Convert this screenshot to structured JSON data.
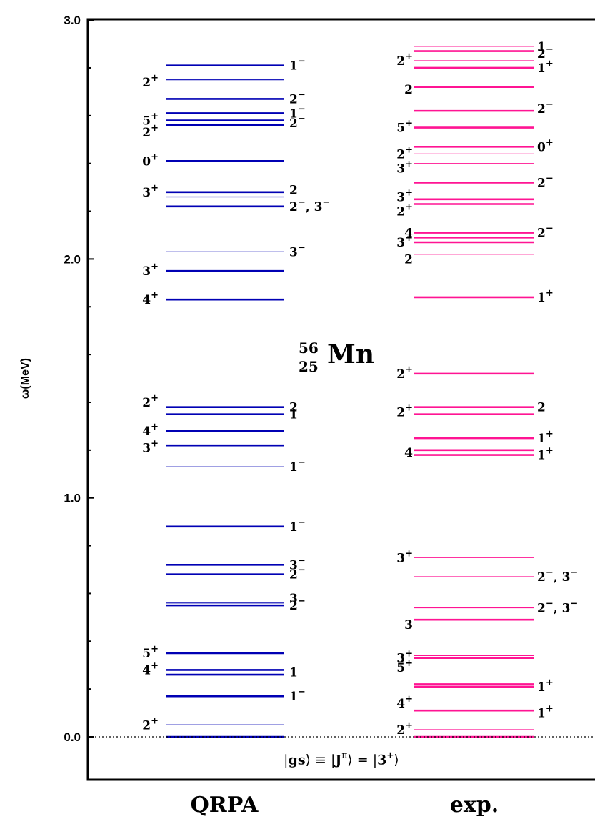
{
  "chart_data": {
    "type": "level-scheme",
    "ylabel": "ω(MeV)",
    "ylim": [
      -0.2,
      3.0
    ],
    "yticks": [
      "0.0",
      "1.0",
      "2.0",
      "3.0"
    ],
    "nucleus": {
      "A": "56",
      "Z": "25",
      "symbol": "Mn"
    },
    "ground_state_label": "|gs⟩ ≡ |J^π⟩ = |3^+⟩",
    "columns": [
      {
        "name": "QRPA",
        "color": "#0000b4",
        "levels": [
          {
            "e": 0.0,
            "thick": true
          },
          {
            "e": 0.05,
            "thick": false
          },
          {
            "e": 0.17,
            "thick": true
          },
          {
            "e": 0.26,
            "thick": true
          },
          {
            "e": 0.28,
            "thick": true
          },
          {
            "e": 0.35,
            "thick": true
          },
          {
            "e": 0.55,
            "thick": true
          },
          {
            "e": 0.56,
            "thick": false
          },
          {
            "e": 0.68,
            "thick": true
          },
          {
            "e": 0.72,
            "thick": true
          },
          {
            "e": 0.88,
            "thick": true
          },
          {
            "e": 1.13,
            "thick": false
          },
          {
            "e": 1.22,
            "thick": true
          },
          {
            "e": 1.28,
            "thick": true
          },
          {
            "e": 1.35,
            "thick": true
          },
          {
            "e": 1.38,
            "thick": true
          },
          {
            "e": 1.83,
            "thick": true
          },
          {
            "e": 1.95,
            "thick": true
          },
          {
            "e": 2.03,
            "thick": false
          },
          {
            "e": 2.22,
            "thick": true
          },
          {
            "e": 2.26,
            "thick": false
          },
          {
            "e": 2.28,
            "thick": true
          },
          {
            "e": 2.41,
            "thick": true
          },
          {
            "e": 2.56,
            "thick": true
          },
          {
            "e": 2.58,
            "thick": true
          },
          {
            "e": 2.61,
            "thick": true
          },
          {
            "e": 2.67,
            "thick": true
          },
          {
            "e": 2.75,
            "thick": false
          },
          {
            "e": 2.81,
            "thick": true
          }
        ],
        "labels_left": [
          {
            "e": 0.05,
            "j": "2",
            "p": "+"
          },
          {
            "e": 0.28,
            "j": "4",
            "p": "+"
          },
          {
            "e": 0.35,
            "j": "5",
            "p": "+"
          },
          {
            "e": 1.21,
            "j": "3",
            "p": "+"
          },
          {
            "e": 1.28,
            "j": "4",
            "p": "+"
          },
          {
            "e": 1.4,
            "j": "2",
            "p": "+"
          },
          {
            "e": 1.83,
            "j": "4",
            "p": "+"
          },
          {
            "e": 1.95,
            "j": "3",
            "p": "+"
          },
          {
            "e": 2.28,
            "j": "3",
            "p": "+"
          },
          {
            "e": 2.41,
            "j": "0",
            "p": "+"
          },
          {
            "e": 2.53,
            "j": "2",
            "p": "+"
          },
          {
            "e": 2.58,
            "j": "5",
            "p": "+"
          },
          {
            "e": 2.74,
            "j": "2",
            "p": "+"
          }
        ],
        "labels_right": [
          {
            "e": 0.17,
            "j": "1",
            "p": "−"
          },
          {
            "e": 0.27,
            "j": "1",
            "p": ""
          },
          {
            "e": 0.55,
            "j": "2",
            "p": "−"
          },
          {
            "e": 0.58,
            "j": "3",
            "p": ""
          },
          {
            "e": 0.68,
            "j": "2",
            "p": "−"
          },
          {
            "e": 0.72,
            "j": "3",
            "p": "−"
          },
          {
            "e": 0.88,
            "j": "1",
            "p": "−"
          },
          {
            "e": 1.13,
            "j": "1",
            "p": "−"
          },
          {
            "e": 1.35,
            "j": "1",
            "p": ""
          },
          {
            "e": 1.38,
            "j": "2",
            "p": ""
          },
          {
            "e": 2.03,
            "j": "3",
            "p": "−"
          },
          {
            "e": 2.22,
            "j": "2",
            "p": "−",
            "j2": "3",
            "p2": "−"
          },
          {
            "e": 2.29,
            "j": "2",
            "p": ""
          },
          {
            "e": 2.57,
            "j": "2",
            "p": "−"
          },
          {
            "e": 2.61,
            "j": "1",
            "p": "−"
          },
          {
            "e": 2.67,
            "j": "2",
            "p": "−"
          },
          {
            "e": 2.81,
            "j": "1",
            "p": "−"
          }
        ]
      },
      {
        "name": "exp.",
        "color": "#ff1493",
        "levels": [
          {
            "e": 0.0,
            "thick": true
          },
          {
            "e": 0.03,
            "thick": false
          },
          {
            "e": 0.11,
            "thick": true
          },
          {
            "e": 0.21,
            "thick": true
          },
          {
            "e": 0.22,
            "thick": true
          },
          {
            "e": 0.33,
            "thick": true
          },
          {
            "e": 0.34,
            "thick": false
          },
          {
            "e": 0.49,
            "thick": true
          },
          {
            "e": 0.54,
            "thick": false
          },
          {
            "e": 0.67,
            "thick": false
          },
          {
            "e": 0.75,
            "thick": false
          },
          {
            "e": 1.18,
            "thick": true
          },
          {
            "e": 1.2,
            "thick": true
          },
          {
            "e": 1.25,
            "thick": true
          },
          {
            "e": 1.35,
            "thick": true
          },
          {
            "e": 1.38,
            "thick": true
          },
          {
            "e": 1.52,
            "thick": true
          },
          {
            "e": 1.84,
            "thick": true
          },
          {
            "e": 2.02,
            "thick": false
          },
          {
            "e": 2.07,
            "thick": true
          },
          {
            "e": 2.09,
            "thick": true
          },
          {
            "e": 2.11,
            "thick": true
          },
          {
            "e": 2.23,
            "thick": true
          },
          {
            "e": 2.25,
            "thick": true
          },
          {
            "e": 2.32,
            "thick": true
          },
          {
            "e": 2.4,
            "thick": false
          },
          {
            "e": 2.44,
            "thick": false
          },
          {
            "e": 2.47,
            "thick": true
          },
          {
            "e": 2.55,
            "thick": true
          },
          {
            "e": 2.62,
            "thick": true
          },
          {
            "e": 2.72,
            "thick": true
          },
          {
            "e": 2.8,
            "thick": true
          },
          {
            "e": 2.83,
            "thick": false
          },
          {
            "e": 2.87,
            "thick": true
          },
          {
            "e": 2.89,
            "thick": false
          }
        ],
        "labels_left": [
          {
            "e": 0.03,
            "j": "2",
            "p": "+"
          },
          {
            "e": 0.14,
            "j": "4",
            "p": "+"
          },
          {
            "e": 0.29,
            "j": "5",
            "p": "+"
          },
          {
            "e": 0.33,
            "j": "3",
            "p": "+"
          },
          {
            "e": 0.47,
            "j": "3",
            "p": ""
          },
          {
            "e": 0.75,
            "j": "3",
            "p": "+"
          },
          {
            "e": 1.19,
            "j": "4",
            "p": ""
          },
          {
            "e": 1.36,
            "j": "2",
            "p": "+"
          },
          {
            "e": 1.52,
            "j": "2",
            "p": "+"
          },
          {
            "e": 2.0,
            "j": "2",
            "p": ""
          },
          {
            "e": 2.07,
            "j": "3",
            "p": "+"
          },
          {
            "e": 2.11,
            "j": "4",
            "p": ""
          },
          {
            "e": 2.2,
            "j": "2",
            "p": "+"
          },
          {
            "e": 2.26,
            "j": "3",
            "p": "+"
          },
          {
            "e": 2.38,
            "j": "3",
            "p": "+"
          },
          {
            "e": 2.44,
            "j": "2",
            "p": "+"
          },
          {
            "e": 2.55,
            "j": "5",
            "p": "+"
          },
          {
            "e": 2.71,
            "j": "2",
            "p": ""
          },
          {
            "e": 2.83,
            "j": "2",
            "p": "+"
          }
        ],
        "labels_right": [
          {
            "e": 0.1,
            "j": "1",
            "p": "+"
          },
          {
            "e": 0.21,
            "j": "1",
            "p": "+"
          },
          {
            "e": 0.54,
            "j": "2",
            "p": "−",
            "j2": "3",
            "p2": "−"
          },
          {
            "e": 0.67,
            "j": "2",
            "p": "−",
            "j2": "3",
            "p2": "−"
          },
          {
            "e": 1.18,
            "j": "1",
            "p": "+"
          },
          {
            "e": 1.25,
            "j": "1",
            "p": "+"
          },
          {
            "e": 1.38,
            "j": "2",
            "p": ""
          },
          {
            "e": 1.84,
            "j": "1",
            "p": "+"
          },
          {
            "e": 2.11,
            "j": "2",
            "p": "−"
          },
          {
            "e": 2.32,
            "j": "2",
            "p": "−"
          },
          {
            "e": 2.47,
            "j": "0",
            "p": "+"
          },
          {
            "e": 2.63,
            "j": "2",
            "p": "−"
          },
          {
            "e": 2.8,
            "j": "1",
            "p": "+"
          },
          {
            "e": 2.86,
            "j": "2",
            "p": "−"
          },
          {
            "e": 2.89,
            "j": "1",
            "p": ""
          }
        ]
      }
    ]
  }
}
